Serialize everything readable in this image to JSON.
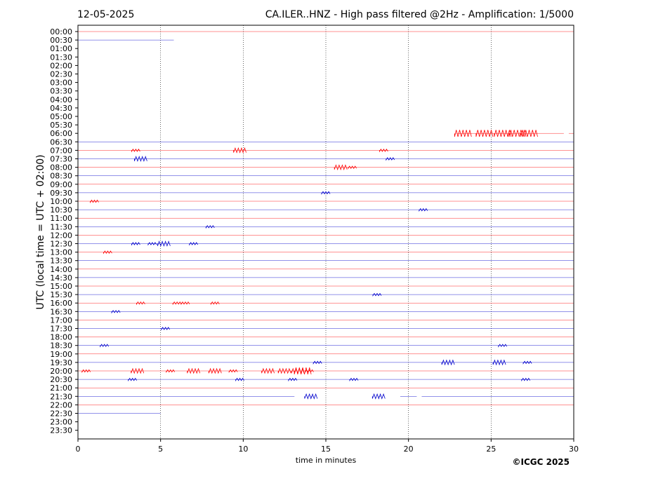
{
  "header": {
    "date": "12-05-2025",
    "title": "CA.ILER..HNZ - High pass filtered @2Hz - Amplification: 1/5000"
  },
  "footer": {
    "copyright": "©ICGC 2025"
  },
  "colors": {
    "even_trace": "#ff0000",
    "odd_trace": "#0000cc",
    "grid": "#000000"
  },
  "chart_data": {
    "type": "line",
    "title": "CA.ILER..HNZ - High pass filtered @2Hz - Amplification: 1/5000",
    "xlabel": "time in minutes",
    "ylabel": "UTC (local time = UTC + 02:00)",
    "xlim": [
      0,
      30
    ],
    "x_ticks": [
      "0",
      "5",
      "10",
      "15",
      "20",
      "25",
      "30"
    ],
    "vertical_gridlines_at_minutes": [
      5,
      10,
      15,
      20,
      25
    ],
    "rows": [
      {
        "label": "00:00",
        "color": "red",
        "data": [
          [
            0,
            30
          ]
        ],
        "events": []
      },
      {
        "label": "00:30",
        "color": "blue",
        "data": [
          [
            0,
            5.8
          ]
        ],
        "events": []
      },
      {
        "label": "01:00",
        "color": "red",
        "data": [],
        "events": []
      },
      {
        "label": "01:30",
        "color": "blue",
        "data": [],
        "events": []
      },
      {
        "label": "02:00",
        "color": "red",
        "data": [],
        "events": []
      },
      {
        "label": "02:30",
        "color": "blue",
        "data": [],
        "events": []
      },
      {
        "label": "03:00",
        "color": "red",
        "data": [],
        "events": []
      },
      {
        "label": "03:30",
        "color": "blue",
        "data": [],
        "events": []
      },
      {
        "label": "04:00",
        "color": "red",
        "data": [],
        "events": []
      },
      {
        "label": "04:30",
        "color": "blue",
        "data": [],
        "events": []
      },
      {
        "label": "05:00",
        "color": "red",
        "data": [],
        "events": []
      },
      {
        "label": "05:30",
        "color": "blue",
        "data": [],
        "events": []
      },
      {
        "label": "06:00",
        "color": "red",
        "data": [
          [
            22.9,
            29.4
          ],
          [
            29.7,
            30
          ]
        ],
        "events": [
          [
            23.3,
            3
          ],
          [
            24.6,
            3
          ],
          [
            25.7,
            3
          ],
          [
            26.6,
            3
          ],
          [
            27.3,
            3
          ]
        ]
      },
      {
        "label": "06:30",
        "color": "blue",
        "data": [
          [
            0,
            30
          ]
        ],
        "events": []
      },
      {
        "label": "07:00",
        "color": "red",
        "data": [
          [
            0,
            30
          ]
        ],
        "events": [
          [
            3.5,
            1
          ],
          [
            9.8,
            2
          ],
          [
            18.5,
            1
          ]
        ]
      },
      {
        "label": "07:30",
        "color": "blue",
        "data": [
          [
            0,
            30
          ]
        ],
        "events": [
          [
            3.8,
            2
          ],
          [
            18.9,
            1
          ]
        ]
      },
      {
        "label": "08:00",
        "color": "red",
        "data": [
          [
            0,
            30
          ]
        ],
        "events": [
          [
            15.9,
            2
          ],
          [
            16.6,
            1
          ]
        ]
      },
      {
        "label": "08:30",
        "color": "blue",
        "data": [
          [
            0,
            30
          ]
        ],
        "events": []
      },
      {
        "label": "09:00",
        "color": "red",
        "data": [
          [
            0,
            30
          ]
        ],
        "events": []
      },
      {
        "label": "09:30",
        "color": "blue",
        "data": [
          [
            0,
            30
          ]
        ],
        "events": [
          [
            15,
            1
          ]
        ]
      },
      {
        "label": "10:00",
        "color": "red",
        "data": [
          [
            0,
            30
          ]
        ],
        "events": [
          [
            1,
            1
          ]
        ]
      },
      {
        "label": "10:30",
        "color": "blue",
        "data": [
          [
            0,
            30
          ]
        ],
        "events": [
          [
            20.9,
            1
          ]
        ]
      },
      {
        "label": "11:00",
        "color": "red",
        "data": [
          [
            0,
            30
          ]
        ],
        "events": []
      },
      {
        "label": "11:30",
        "color": "blue",
        "data": [
          [
            0,
            30
          ]
        ],
        "events": [
          [
            8,
            1
          ]
        ]
      },
      {
        "label": "12:00",
        "color": "red",
        "data": [
          [
            0,
            30
          ]
        ],
        "events": []
      },
      {
        "label": "12:30",
        "color": "blue",
        "data": [
          [
            0,
            30
          ]
        ],
        "events": [
          [
            3.5,
            1
          ],
          [
            4.5,
            1
          ],
          [
            5.2,
            2
          ],
          [
            7,
            1
          ]
        ]
      },
      {
        "label": "13:00",
        "color": "red",
        "data": [
          [
            0,
            30
          ]
        ],
        "events": [
          [
            1.8,
            1
          ]
        ]
      },
      {
        "label": "13:30",
        "color": "blue",
        "data": [
          [
            0,
            30
          ]
        ],
        "events": []
      },
      {
        "label": "14:00",
        "color": "red",
        "data": [
          [
            0,
            30
          ]
        ],
        "events": []
      },
      {
        "label": "14:30",
        "color": "blue",
        "data": [
          [
            0,
            30
          ]
        ],
        "events": []
      },
      {
        "label": "15:00",
        "color": "red",
        "data": [
          [
            0,
            30
          ]
        ],
        "events": []
      },
      {
        "label": "15:30",
        "color": "blue",
        "data": [
          [
            0,
            30
          ]
        ],
        "events": [
          [
            18.1,
            1
          ]
        ]
      },
      {
        "label": "16:00",
        "color": "red",
        "data": [
          [
            0,
            30
          ]
        ],
        "events": [
          [
            3.8,
            1
          ],
          [
            6,
            1
          ],
          [
            6.5,
            1
          ],
          [
            8.3,
            1
          ]
        ]
      },
      {
        "label": "16:30",
        "color": "blue",
        "data": [
          [
            0,
            30
          ]
        ],
        "events": [
          [
            2.3,
            1
          ]
        ]
      },
      {
        "label": "17:00",
        "color": "red",
        "data": [
          [
            0,
            30
          ]
        ],
        "events": []
      },
      {
        "label": "17:30",
        "color": "blue",
        "data": [
          [
            0,
            30
          ]
        ],
        "events": [
          [
            5.3,
            1
          ]
        ]
      },
      {
        "label": "18:00",
        "color": "red",
        "data": [
          [
            0,
            30
          ]
        ],
        "events": []
      },
      {
        "label": "18:30",
        "color": "blue",
        "data": [
          [
            0,
            30
          ]
        ],
        "events": [
          [
            1.6,
            1
          ],
          [
            25.7,
            1
          ]
        ]
      },
      {
        "label": "19:00",
        "color": "red",
        "data": [
          [
            0,
            30
          ]
        ],
        "events": []
      },
      {
        "label": "19:30",
        "color": "blue",
        "data": [
          [
            0,
            30
          ]
        ],
        "events": [
          [
            14.5,
            1
          ],
          [
            22.4,
            2
          ],
          [
            25.5,
            2
          ],
          [
            27.2,
            1
          ]
        ]
      },
      {
        "label": "20:00",
        "color": "red",
        "data": [
          [
            0,
            30
          ]
        ],
        "events": [
          [
            0.5,
            1
          ],
          [
            3.6,
            2
          ],
          [
            5.6,
            1
          ],
          [
            7,
            2
          ],
          [
            8.3,
            2
          ],
          [
            9.4,
            1
          ],
          [
            11.5,
            2
          ],
          [
            12.5,
            2
          ],
          [
            13.3,
            2
          ],
          [
            13.6,
            3
          ],
          [
            14,
            1
          ]
        ]
      },
      {
        "label": "20:30",
        "color": "blue",
        "data": [
          [
            0,
            30
          ]
        ],
        "events": [
          [
            3.3,
            1
          ],
          [
            9.8,
            1
          ],
          [
            13,
            1
          ],
          [
            16.7,
            1
          ],
          [
            27.1,
            1
          ]
        ]
      },
      {
        "label": "21:00",
        "color": "red",
        "data": [
          [
            0,
            30
          ]
        ],
        "events": []
      },
      {
        "label": "21:30",
        "color": "blue",
        "data": [
          [
            0,
            13.1
          ],
          [
            14.1,
            14.2
          ],
          [
            18.2,
            18.3
          ],
          [
            19.5,
            20.5
          ],
          [
            20.8,
            30
          ]
        ],
        "events": [
          [
            14.1,
            2
          ],
          [
            18.2,
            2
          ]
        ]
      },
      {
        "label": "22:00",
        "color": "red",
        "data": [
          [
            0,
            30
          ]
        ],
        "events": []
      },
      {
        "label": "22:30",
        "color": "blue",
        "data": [
          [
            0,
            5
          ]
        ],
        "events": []
      },
      {
        "label": "23:00",
        "color": "red",
        "data": [],
        "events": []
      },
      {
        "label": "23:30",
        "color": "blue",
        "data": [],
        "events": []
      }
    ]
  }
}
